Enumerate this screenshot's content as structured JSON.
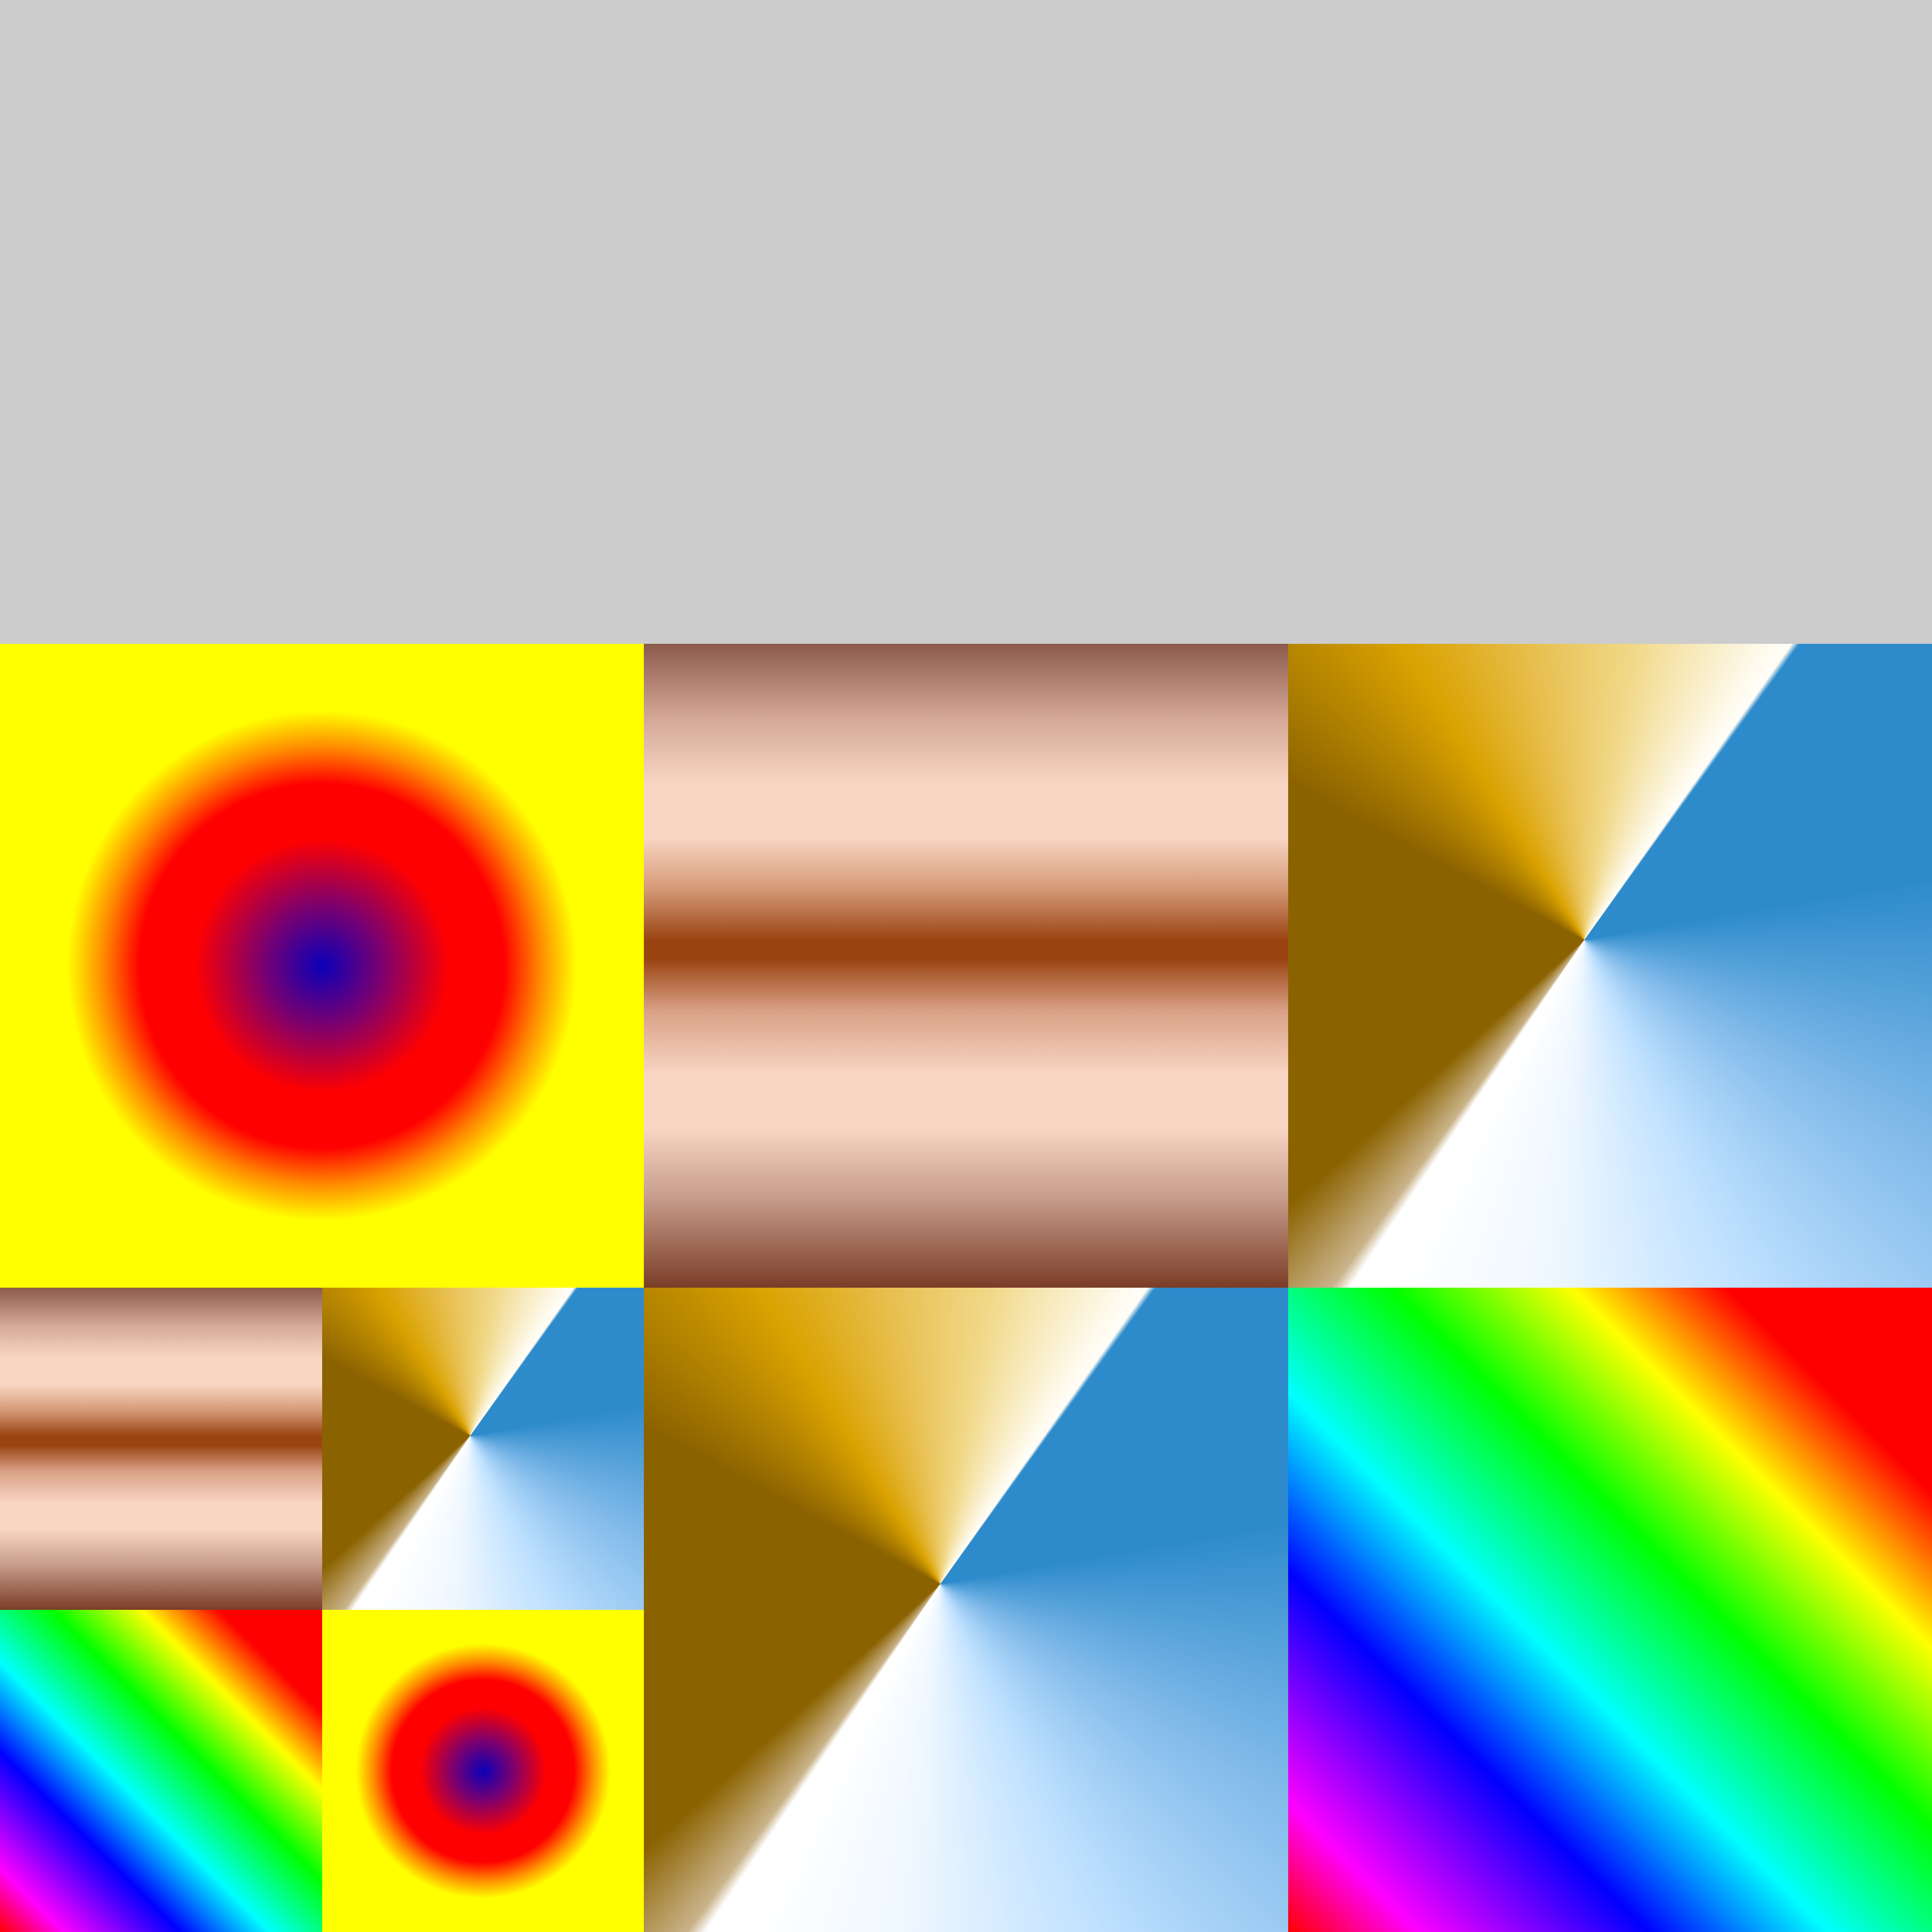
{
  "canvas": {
    "background": "#cccccc"
  },
  "palettes": {
    "radial": [
      "#0b00b8",
      "#ff0000",
      "#ffff00"
    ],
    "banded": [
      "#8b5a4b",
      "#f9d6c4",
      "#9a4412",
      "#7a3d27"
    ],
    "conic_top": [
      "#8b6200",
      "#d9a200",
      "#f1d98a",
      "#fffdf6"
    ],
    "conic_bottom": [
      "#ffffff",
      "#bfe1ff",
      "#2e8bcb"
    ],
    "diagonal": [
      "#ff0000",
      "#ffff00",
      "#00ff00",
      "#00ffff",
      "#0000ff",
      "#ff00ff"
    ]
  }
}
